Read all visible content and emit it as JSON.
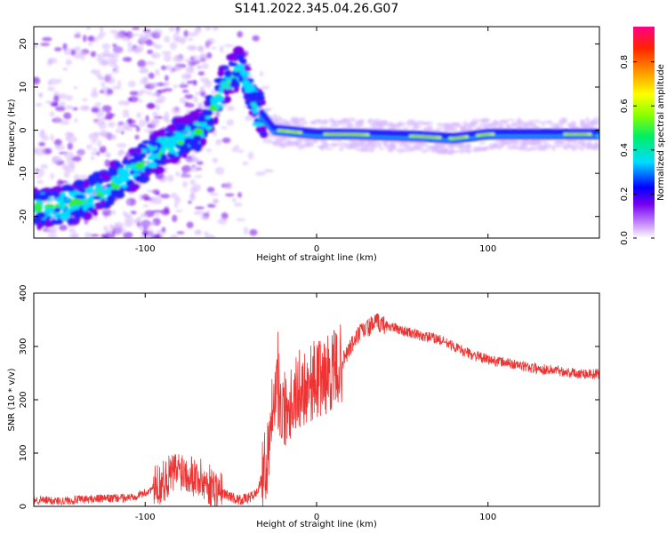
{
  "figure_title": "S141.2022.345.04.26.G07",
  "chart_data": [
    {
      "type": "heatmap",
      "xlabel": "Height of straight line (km)",
      "ylabel": "Frequency (Hz)",
      "xlim": [
        -165,
        165
      ],
      "ylim": [
        -25,
        24
      ],
      "x_ticks": [
        -100,
        0,
        100
      ],
      "y_ticks": [
        -20,
        -10,
        0,
        10,
        20
      ],
      "colorbar": {
        "label": "Normalized spectral amplitude",
        "range": [
          0,
          0.96
        ],
        "ticks": [
          0.0,
          0.2,
          0.4,
          0.6,
          0.8
        ],
        "colormap": [
          "#ffffff",
          "#8800ff",
          "#0000ff",
          "#00ffff",
          "#00ff00",
          "#ffff00",
          "#ff8800",
          "#ff0000",
          "#ff0088"
        ]
      },
      "ridge": [
        {
          "x": -160,
          "y": -18
        },
        {
          "x": -140,
          "y": -17
        },
        {
          "x": -120,
          "y": -13
        },
        {
          "x": -100,
          "y": -7
        },
        {
          "x": -80,
          "y": -2
        },
        {
          "x": -65,
          "y": 1
        },
        {
          "x": -55,
          "y": 10
        },
        {
          "x": -45,
          "y": 15
        },
        {
          "x": -35,
          "y": 5
        },
        {
          "x": -25,
          "y": 0
        },
        {
          "x": 0,
          "y": -1
        },
        {
          "x": 20,
          "y": -1
        },
        {
          "x": 60,
          "y": -1.5
        },
        {
          "x": 80,
          "y": -2
        },
        {
          "x": 100,
          "y": -1
        },
        {
          "x": 165,
          "y": -1
        }
      ]
    },
    {
      "type": "line",
      "xlabel": "Height of straight line (km)",
      "ylabel": "SNR (10 * v/v)",
      "xlim": [
        -165,
        165
      ],
      "ylim": [
        0,
        400
      ],
      "x_ticks": [
        -100,
        0,
        100
      ],
      "y_ticks": [
        0,
        100,
        200,
        300,
        400
      ],
      "series": [
        {
          "color": "#ee3333",
          "x": [
            -165,
            -150,
            -130,
            -110,
            -100,
            -95,
            -90,
            -85,
            -80,
            -75,
            -70,
            -65,
            -60,
            -55,
            -50,
            -45,
            -40,
            -35,
            -30,
            -28,
            -25,
            -22,
            -20,
            -15,
            -10,
            -5,
            0,
            5,
            10,
            15,
            20,
            25,
            30,
            35,
            40,
            50,
            60,
            70,
            80,
            90,
            100,
            110,
            120,
            130,
            140,
            150,
            165
          ],
          "y": [
            12,
            10,
            14,
            16,
            25,
            35,
            45,
            60,
            70,
            65,
            55,
            45,
            35,
            25,
            18,
            12,
            15,
            25,
            70,
            120,
            230,
            200,
            180,
            200,
            220,
            230,
            240,
            245,
            255,
            270,
            300,
            325,
            335,
            345,
            340,
            330,
            320,
            315,
            300,
            285,
            275,
            270,
            263,
            258,
            255,
            250,
            248
          ]
        }
      ]
    }
  ]
}
